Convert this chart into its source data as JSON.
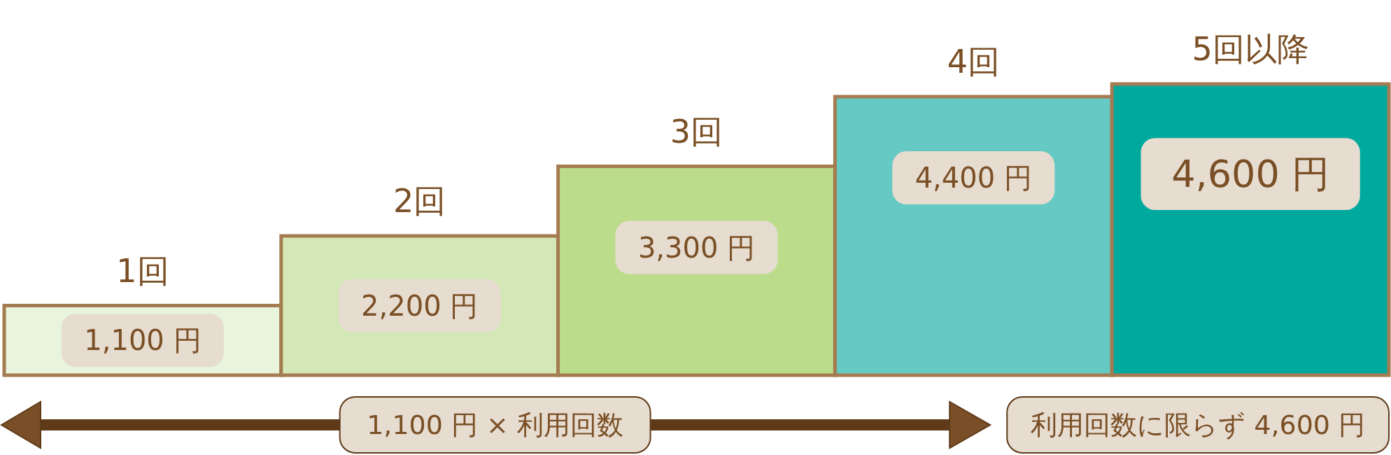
{
  "chart_data": {
    "type": "bar",
    "categories": [
      "1回",
      "2回",
      "3回",
      "4回",
      "5回以降"
    ],
    "values": [
      1100,
      2200,
      3300,
      4400,
      4600
    ],
    "colors": [
      "#e8f4dc",
      "#d3e8b6",
      "#bbdd8b",
      "#66c9c3",
      "#00a99d"
    ],
    "value_labels": [
      "1,100 円",
      "2,200 円",
      "3,300 円",
      "4,400 円",
      "4,600 円"
    ],
    "tick_labels": "x",
    "annotations": [
      "1,100 円 × 利用回数",
      "利用回数に限らず 4,600 円"
    ]
  }
}
